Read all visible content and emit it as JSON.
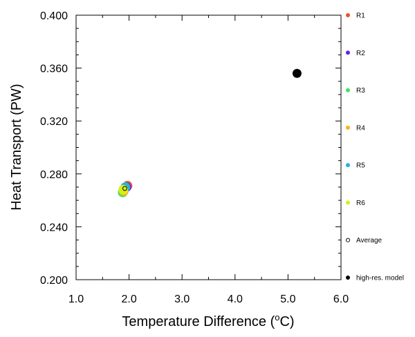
{
  "chart_data": {
    "type": "scatter",
    "title": "",
    "xlabel": "Temperature Difference (",
    "xlabel_sup": "o",
    "xlabel_tail": "C)",
    "ylabel": "Heat Transport (PW)",
    "xlim": [
      1.0,
      6.0
    ],
    "ylim": [
      0.2,
      0.4
    ],
    "x_ticks": [
      "1.0",
      "2.0",
      "3.0",
      "4.0",
      "5.0",
      "6.0"
    ],
    "y_ticks": [
      "0.200",
      "0.240",
      "0.280",
      "0.320",
      "0.360",
      "0.400"
    ],
    "grid": false,
    "legend_position": "right",
    "series": [
      {
        "name": "R1",
        "color": "#f0512a",
        "marker": "filled-circle",
        "points": [
          {
            "x": 1.97,
            "y": 0.271
          }
        ]
      },
      {
        "name": "R2",
        "color": "#6a22e0",
        "marker": "filled-circle",
        "points": [
          {
            "x": 1.95,
            "y": 0.27
          }
        ]
      },
      {
        "name": "R3",
        "color": "#48e05a",
        "marker": "filled-circle",
        "points": [
          {
            "x": 1.88,
            "y": 0.266
          }
        ]
      },
      {
        "name": "R4",
        "color": "#ffb020",
        "marker": "filled-circle",
        "points": [
          {
            "x": 1.9,
            "y": 0.267
          }
        ]
      },
      {
        "name": "R5",
        "color": "#21b4e0",
        "marker": "filled-circle",
        "points": [
          {
            "x": 1.93,
            "y": 0.27
          }
        ]
      },
      {
        "name": "R6",
        "color": "#d4f01c",
        "marker": "filled-circle",
        "points": [
          {
            "x": 1.89,
            "y": 0.268
          }
        ]
      },
      {
        "name": "Average",
        "color": "#000000",
        "marker": "hollow-circle",
        "points": [
          {
            "x": 1.92,
            "y": 0.269
          }
        ]
      },
      {
        "name": "high-res. model",
        "color": "#000000",
        "marker": "filled-circle",
        "points": [
          {
            "x": 5.17,
            "y": 0.356
          }
        ]
      }
    ]
  }
}
